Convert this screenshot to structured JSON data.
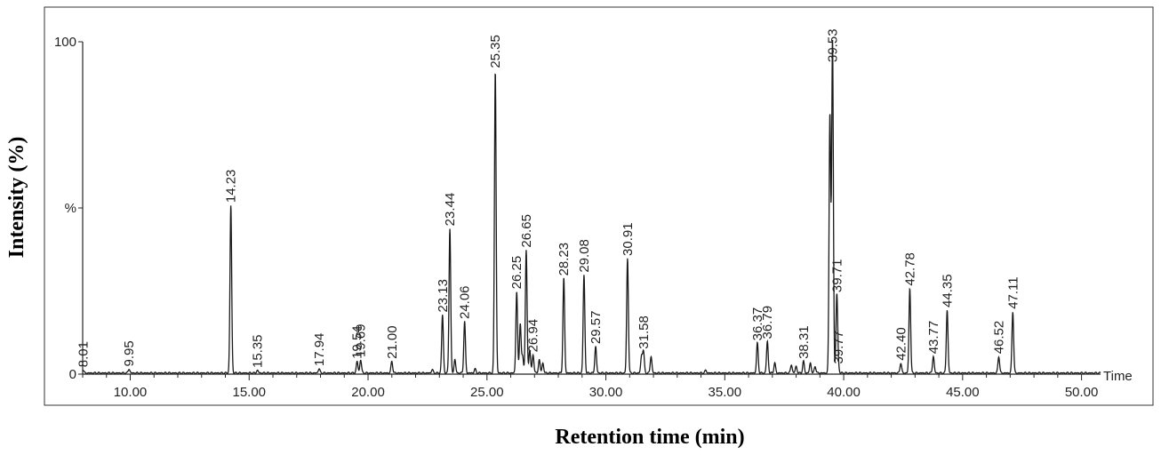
{
  "chart_data": {
    "type": "line",
    "title": "",
    "xlabel": "Retention time (min)",
    "ylabel": "Intensity (%)",
    "xlim": [
      8.0,
      50.8
    ],
    "ylim": [
      0,
      100
    ],
    "y_ticks": [
      {
        "label": "0",
        "value": 0
      },
      {
        "label": "%",
        "value": 50
      },
      {
        "label": "100",
        "value": 100
      }
    ],
    "x_ticks": [
      10,
      15,
      20,
      25,
      30,
      35,
      40,
      45,
      50
    ],
    "x_tick_labels": [
      "10.00",
      "15.00",
      "20.00",
      "25.00",
      "30.00",
      "35.00",
      "40.00",
      "45.00",
      "50.00"
    ],
    "x_axis_end_label": "Time",
    "grid": false,
    "legend": "none",
    "line_color": "#1a1a1a",
    "peaks": [
      {
        "rt": 8.01,
        "height": 1.0,
        "label": "8.01"
      },
      {
        "rt": 9.95,
        "height": 1.2,
        "label": "9.95"
      },
      {
        "rt": 14.23,
        "height": 50.5,
        "label": "14.23"
      },
      {
        "rt": 15.35,
        "height": 0.8,
        "label": "15.35"
      },
      {
        "rt": 17.94,
        "height": 1.3,
        "label": "17.94"
      },
      {
        "rt": 19.54,
        "height": 3.5,
        "label": "19.54"
      },
      {
        "rt": 19.69,
        "height": 4.0,
        "label": "19.69"
      },
      {
        "rt": 21.0,
        "height": 3.5,
        "label": "21.00"
      },
      {
        "rt": 23.13,
        "height": 17.5,
        "label": "23.13"
      },
      {
        "rt": 23.44,
        "height": 43.5,
        "label": "23.44"
      },
      {
        "rt": 24.06,
        "height": 15.5,
        "label": "24.06"
      },
      {
        "rt": 25.35,
        "height": 91.0,
        "label": "25.35"
      },
      {
        "rt": 26.25,
        "height": 24.5,
        "label": "26.25"
      },
      {
        "rt": 26.65,
        "height": 37.0,
        "label": "26.65"
      },
      {
        "rt": 26.94,
        "height": 5.5,
        "label": "26.94"
      },
      {
        "rt": 28.23,
        "height": 28.5,
        "label": "28.23"
      },
      {
        "rt": 29.08,
        "height": 29.5,
        "label": "29.08"
      },
      {
        "rt": 29.57,
        "height": 8.0,
        "label": "29.57"
      },
      {
        "rt": 30.91,
        "height": 34.5,
        "label": "30.91"
      },
      {
        "rt": 31.58,
        "height": 6.5,
        "label": "31.58"
      },
      {
        "rt": 36.37,
        "height": 9.0,
        "label": "36.37"
      },
      {
        "rt": 36.79,
        "height": 9.5,
        "label": "36.79"
      },
      {
        "rt": 38.31,
        "height": 3.5,
        "label": "38.31"
      },
      {
        "rt": 39.53,
        "height": 100.0,
        "label": "39.53"
      },
      {
        "rt": 39.71,
        "height": 23.5,
        "label": "39.71"
      },
      {
        "rt": 39.77,
        "height": 2.0,
        "label": "39.77"
      },
      {
        "rt": 42.4,
        "height": 3.0,
        "label": "42.40"
      },
      {
        "rt": 42.78,
        "height": 25.5,
        "label": "42.78"
      },
      {
        "rt": 43.77,
        "height": 5.0,
        "label": "43.77"
      },
      {
        "rt": 44.35,
        "height": 19.0,
        "label": "44.35"
      },
      {
        "rt": 46.52,
        "height": 5.0,
        "label": "46.52"
      },
      {
        "rt": 47.11,
        "height": 18.5,
        "label": "47.11"
      }
    ],
    "minor_peaks": [
      {
        "rt": 23.65,
        "height": 4.0
      },
      {
        "rt": 26.4,
        "height": 15.0
      },
      {
        "rt": 26.5,
        "height": 5.0
      },
      {
        "rt": 26.8,
        "height": 7.0
      },
      {
        "rt": 27.2,
        "height": 4.0
      },
      {
        "rt": 27.35,
        "height": 3.0
      },
      {
        "rt": 31.5,
        "height": 5.0
      },
      {
        "rt": 31.9,
        "height": 5.0
      },
      {
        "rt": 37.1,
        "height": 3.0
      },
      {
        "rt": 37.8,
        "height": 2.5
      },
      {
        "rt": 38.0,
        "height": 2.0
      },
      {
        "rt": 38.6,
        "height": 3.0
      },
      {
        "rt": 38.8,
        "height": 2.0
      },
      {
        "rt": 39.42,
        "height": 78.0
      },
      {
        "rt": 22.7,
        "height": 1.0
      },
      {
        "rt": 24.5,
        "height": 1.2
      },
      {
        "rt": 34.2,
        "height": 0.8
      }
    ]
  }
}
